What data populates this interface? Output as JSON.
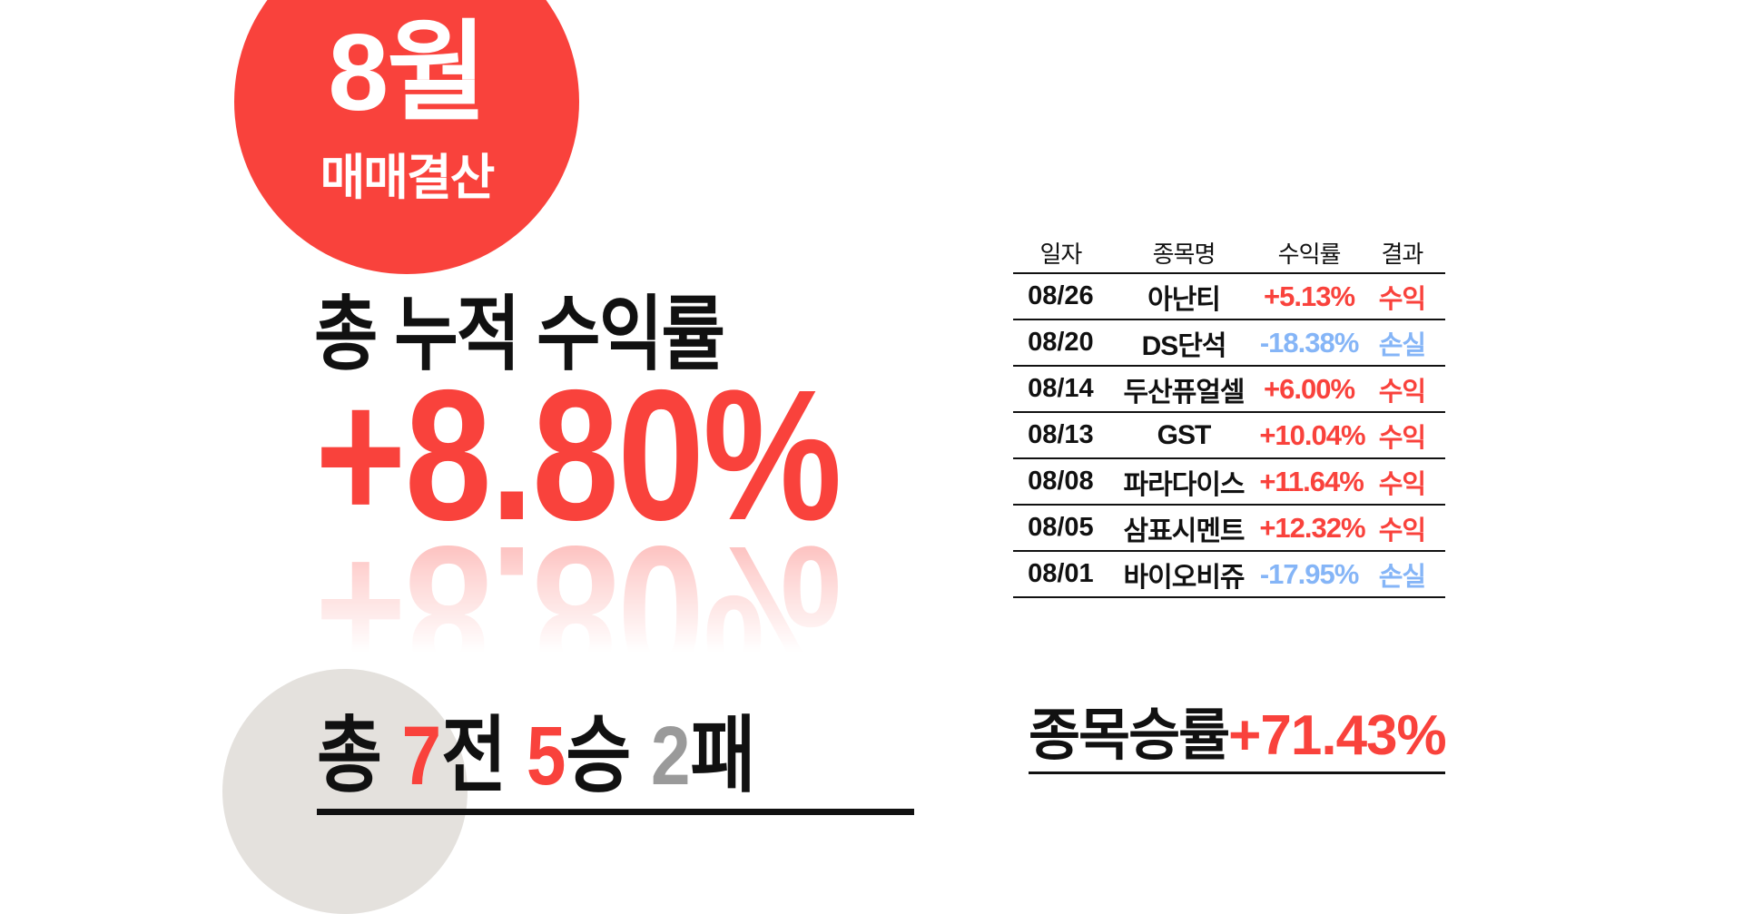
{
  "badge": {
    "month": "8월",
    "subtitle": "매매결산",
    "bg_color": "#F9423C"
  },
  "summary": {
    "title": "총 누적 수익률",
    "value": "+8.80%"
  },
  "record": {
    "prefix": "총 ",
    "games": "7",
    "games_suffix": "전 ",
    "wins": "5",
    "wins_suffix": "승 ",
    "losses": "2",
    "losses_suffix": "패"
  },
  "win_rate": {
    "label": "종목승률",
    "value": "+71.43%"
  },
  "table": {
    "headers": [
      "일자",
      "종목명",
      "수익률",
      "결과"
    ],
    "rows": [
      {
        "date": "08/26",
        "name": "아난티",
        "return": "+5.13%",
        "result": "수익",
        "type": "profit"
      },
      {
        "date": "08/20",
        "name": "DS단석",
        "return": "-18.38%",
        "result": "손실",
        "type": "loss"
      },
      {
        "date": "08/14",
        "name": "두산퓨얼셀",
        "return": "+6.00%",
        "result": "수익",
        "type": "profit"
      },
      {
        "date": "08/13",
        "name": "GST",
        "return": "+10.04%",
        "result": "수익",
        "type": "profit"
      },
      {
        "date": "08/08",
        "name": "파라다이스",
        "return": "+11.64%",
        "result": "수익",
        "type": "profit"
      },
      {
        "date": "08/05",
        "name": "삼표시멘트",
        "return": "+12.32%",
        "result": "수익",
        "type": "profit"
      },
      {
        "date": "08/01",
        "name": "바이오비쥬",
        "return": "-17.95%",
        "result": "손실",
        "type": "loss"
      }
    ]
  },
  "colors": {
    "profit_red": "#F9423C",
    "loss_blue": "#85B5F7",
    "neutral_gray": "#9A9A9A",
    "decor_circle_gray": "#E4E1DD",
    "line_black": "#111111"
  }
}
